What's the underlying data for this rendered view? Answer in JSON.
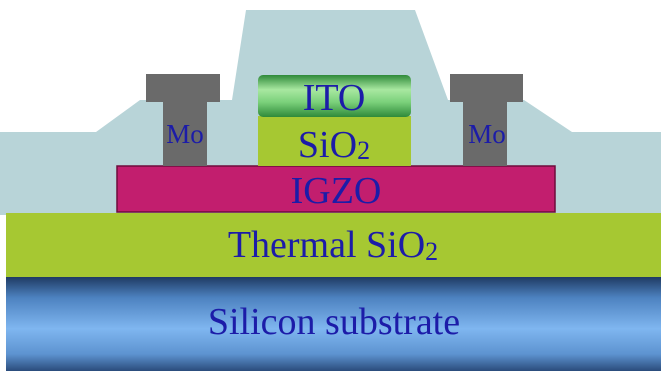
{
  "layers": {
    "substrate": {
      "label": "Silicon substrate"
    },
    "thermal_oxide": {
      "label_main": "Thermal SiO",
      "label_sub": "2"
    },
    "channel": {
      "label": "IGZO"
    },
    "etch_stop": {
      "label_main": "SiO",
      "label_sub": "2"
    },
    "gate": {
      "label": "ITO"
    },
    "source_contact": {
      "label": "Mo"
    },
    "drain_contact": {
      "label": "Mo"
    }
  },
  "colors": {
    "substrate_blue": "#6fa8e8",
    "thermal_oxide_green": "#a6c832",
    "igzo_magenta": "#c21e6e",
    "ito_green": "#63c463",
    "mo_gray": "#6a6a6a",
    "passivation": "#b8d4d8",
    "text_blue": "#1c1ca8"
  }
}
